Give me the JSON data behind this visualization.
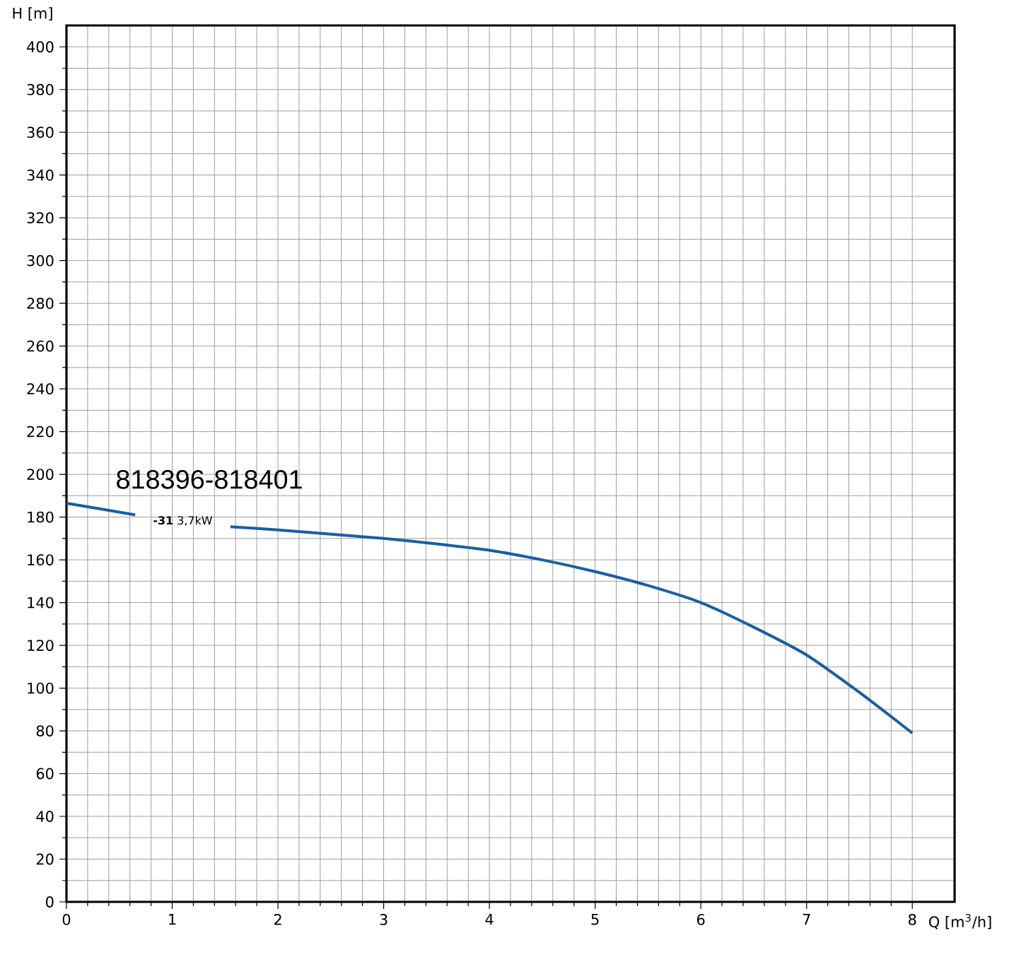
{
  "chart_data": {
    "type": "line",
    "x": [
      0,
      0.3,
      0.65,
      1.1,
      1.55,
      2,
      2.5,
      3,
      3.5,
      4,
      4.5,
      5,
      5.5,
      6,
      6.5,
      7,
      7.5,
      8
    ],
    "series": [
      {
        "name": "**-31** 3,7kW",
        "color": "#1b5e9e",
        "values": [
          186.5,
          184,
          181,
          null,
          175.5,
          174,
          172,
          170,
          167.5,
          164.5,
          160,
          154.5,
          148,
          140,
          128.5,
          115.5,
          98,
          79
        ]
      }
    ],
    "xlabel": "Q [m$^{3}$/h]",
    "ylabel": "H [m]",
    "xlim": [
      0,
      8.4
    ],
    "ylim": [
      0,
      410
    ],
    "xticks": [
      0,
      1,
      2,
      3,
      4,
      5,
      6,
      7,
      8
    ],
    "yticks": [
      0,
      20,
      40,
      60,
      80,
      100,
      120,
      140,
      160,
      180,
      200,
      220,
      240,
      260,
      280,
      300,
      320,
      340,
      360,
      380,
      400
    ],
    "grid": true,
    "title": "818396-818401"
  }
}
